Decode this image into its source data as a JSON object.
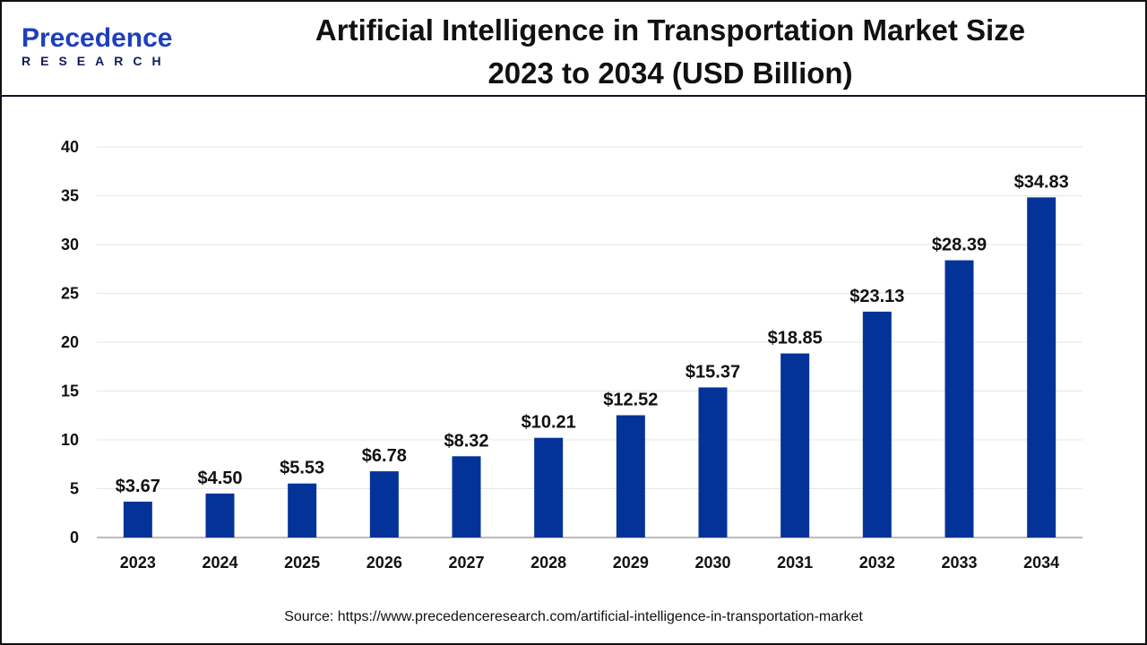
{
  "header": {
    "logo_text": "Precedence",
    "logo_subtext": "RESEARCH",
    "title_line1": "Artificial Intelligence in Transportation Market Size",
    "title_line2": "2023 to 2034 (USD Billion)"
  },
  "source": "Source: https://www.precedenceresearch.com/artificial-intelligence-in-transportation-market",
  "chart_data": {
    "type": "bar",
    "title": "Artificial Intelligence in Transportation Market Size 2023 to 2034 (USD Billion)",
    "categories": [
      "2023",
      "2024",
      "2025",
      "2026",
      "2027",
      "2028",
      "2029",
      "2030",
      "2031",
      "2032",
      "2033",
      "2034"
    ],
    "values": [
      3.67,
      4.5,
      5.53,
      6.78,
      8.32,
      10.21,
      12.52,
      15.37,
      18.85,
      23.13,
      28.39,
      34.83
    ],
    "data_labels": [
      "$3.67",
      "$4.50",
      "$5.53",
      "$6.78",
      "$8.32",
      "$10.21",
      "$12.52",
      "$15.37",
      "$18.85",
      "$23.13",
      "$28.39",
      "$34.83"
    ],
    "yticks": [
      "0",
      "5",
      "10",
      "15",
      "20",
      "25",
      "30",
      "35",
      "40"
    ],
    "ylim": [
      0,
      40
    ],
    "grid": true,
    "legend": "none",
    "bar_color": "#033399"
  }
}
